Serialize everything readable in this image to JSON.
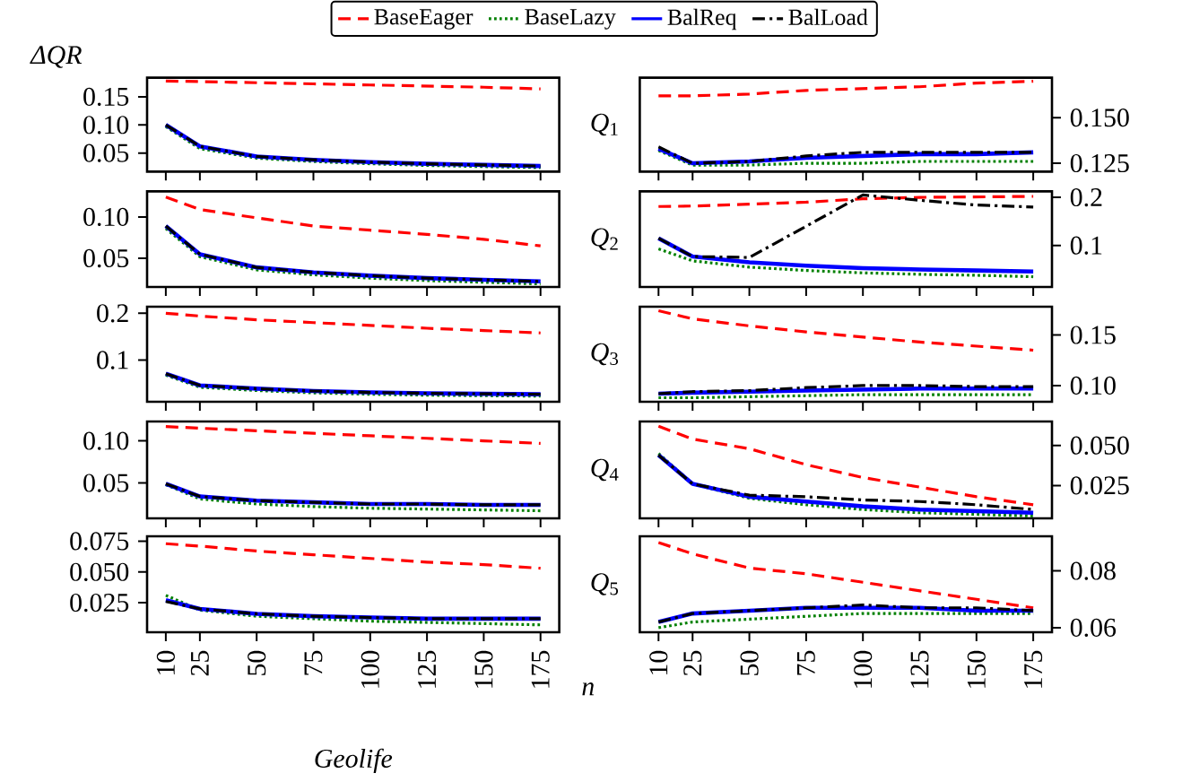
{
  "chart_data": [
    {
      "type": "line",
      "ylabel": "ΔQR",
      "legend": "top",
      "tick_labels": "y",
      "x": [
        10,
        25,
        50,
        75,
        100,
        125,
        150,
        175
      ],
      "xlim": [
        1.75,
        183.25
      ],
      "xticks": [
        10,
        25,
        50,
        75,
        100,
        125,
        150,
        175
      ],
      "ylim": [
        0.017,
        0.184
      ],
      "yticks": [
        0.15,
        {
          "value": 0.1,
          "label": "0.10"
        },
        0.05
      ],
      "series": [
        {
          "name": "BaseEager",
          "color": "#ff0000",
          "line_style": "dashed",
          "values": [
            0.178,
            0.177,
            0.175,
            0.173,
            0.171,
            0.169,
            0.167,
            0.164
          ]
        },
        {
          "name": "BaseLazy",
          "color": "#008000",
          "line_style": "dotted",
          "values": [
            0.097,
            0.058,
            0.041,
            0.035,
            0.031,
            0.028,
            0.026,
            0.024
          ]
        },
        {
          "name": "BalReq",
          "color": "#0000ff",
          "line_style": "solid",
          "values": [
            0.1,
            0.062,
            0.044,
            0.038,
            0.034,
            0.031,
            0.029,
            0.027
          ]
        },
        {
          "name": "BalLoad",
          "color": "#000000",
          "line_style": "dashdot",
          "values": [
            0.1,
            0.062,
            0.044,
            0.038,
            0.034,
            0.031,
            0.029,
            0.027
          ]
        }
      ]
    },
    {
      "type": "line",
      "title": "*Q*$_{1}$",
      "tick_labels": "y",
      "x": [
        10,
        25,
        50,
        75,
        100,
        125,
        150,
        175
      ],
      "xlim": [
        1.75,
        183.25
      ],
      "xticks": [
        10,
        25,
        50,
        75,
        100,
        125,
        150,
        175
      ],
      "ylim": [
        0.1204,
        0.172
      ],
      "yticks": [
        {
          "value": 0.15,
          "label": "0.150"
        },
        {
          "value": 0.125,
          "label": "0.125"
        }
      ],
      "series": [
        {
          "color": "#ff0000",
          "line_style": "dashed",
          "values": [
            0.162,
            0.162,
            0.163,
            0.165,
            0.166,
            0.167,
            0.169,
            0.17
          ]
        },
        {
          "color": "#008000",
          "line_style": "dotted",
          "values": [
            0.132,
            0.124,
            0.124,
            0.125,
            0.125,
            0.126,
            0.126,
            0.126
          ]
        },
        {
          "color": "#0000ff",
          "line_style": "solid",
          "values": [
            0.133,
            0.125,
            0.126,
            0.128,
            0.129,
            0.13,
            0.13,
            0.131
          ]
        },
        {
          "color": "#000000",
          "line_style": "dashdot",
          "values": [
            0.134,
            0.125,
            0.126,
            0.129,
            0.131,
            0.131,
            0.131,
            0.131
          ]
        }
      ]
    },
    {
      "type": "line",
      "tick_labels": "y",
      "x": [
        10,
        25,
        50,
        75,
        100,
        125,
        150,
        175
      ],
      "xlim": [
        1.75,
        183.25
      ],
      "xticks": [
        10,
        25,
        50,
        75,
        100,
        125,
        150,
        175
      ],
      "ylim": [
        0.0153,
        0.131
      ],
      "yticks": [
        {
          "value": 0.1,
          "label": "0.10"
        },
        0.05
      ],
      "series": [
        {
          "color": "#ff0000",
          "line_style": "dashed",
          "values": [
            0.124,
            0.109,
            0.099,
            0.089,
            0.084,
            0.079,
            0.073,
            0.065
          ]
        },
        {
          "color": "#008000",
          "line_style": "dotted",
          "values": [
            0.086,
            0.052,
            0.036,
            0.03,
            0.026,
            0.023,
            0.021,
            0.019
          ]
        },
        {
          "color": "#0000ff",
          "line_style": "solid",
          "values": [
            0.089,
            0.055,
            0.039,
            0.033,
            0.029,
            0.026,
            0.024,
            0.022
          ]
        },
        {
          "color": "#000000",
          "line_style": "dashdot",
          "values": [
            0.089,
            0.055,
            0.039,
            0.033,
            0.029,
            0.026,
            0.024,
            0.022
          ]
        }
      ]
    },
    {
      "type": "line",
      "title": "*Q*$_{2}$",
      "tick_labels": "y",
      "x": [
        10,
        25,
        50,
        75,
        100,
        125,
        150,
        175
      ],
      "xlim": [
        1.75,
        183.25
      ],
      "xticks": [
        10,
        25,
        50,
        75,
        100,
        125,
        150,
        175
      ],
      "ylim": [
        0.0137,
        0.2125
      ],
      "yticks": [
        0.2,
        0.1
      ],
      "series": [
        {
          "color": "#ff0000",
          "line_style": "dashed",
          "values": [
            0.181,
            0.182,
            0.186,
            0.19,
            0.197,
            0.2,
            0.201,
            0.202
          ]
        },
        {
          "color": "#008000",
          "line_style": "dotted",
          "values": [
            0.093,
            0.068,
            0.055,
            0.048,
            0.043,
            0.04,
            0.038,
            0.035
          ]
        },
        {
          "color": "#0000ff",
          "line_style": "solid",
          "values": [
            0.115,
            0.077,
            0.065,
            0.058,
            0.053,
            0.05,
            0.048,
            0.046
          ]
        },
        {
          "color": "#000000",
          "line_style": "dashdot",
          "values": [
            0.115,
            0.077,
            0.075,
            0.14,
            0.205,
            0.194,
            0.184,
            0.18
          ]
        }
      ]
    },
    {
      "type": "line",
      "tick_labels": "y",
      "x": [
        10,
        25,
        50,
        75,
        100,
        125,
        150,
        175
      ],
      "xlim": [
        1.75,
        183.25
      ],
      "xticks": [
        10,
        25,
        50,
        75,
        100,
        125,
        150,
        175
      ],
      "ylim": [
        0.011,
        0.214
      ],
      "yticks": [
        0.2,
        0.1
      ],
      "series": [
        {
          "color": "#ff0000",
          "line_style": "dashed",
          "values": [
            0.2,
            0.194,
            0.186,
            0.18,
            0.174,
            0.168,
            0.163,
            0.158
          ]
        },
        {
          "color": "#008000",
          "line_style": "dotted",
          "values": [
            0.068,
            0.042,
            0.035,
            0.03,
            0.027,
            0.025,
            0.024,
            0.023
          ]
        },
        {
          "color": "#0000ff",
          "line_style": "solid",
          "values": [
            0.071,
            0.046,
            0.039,
            0.034,
            0.031,
            0.029,
            0.028,
            0.027
          ]
        },
        {
          "color": "#000000",
          "line_style": "dashdot",
          "values": [
            0.071,
            0.046,
            0.039,
            0.034,
            0.031,
            0.029,
            0.028,
            0.027
          ]
        }
      ]
    },
    {
      "type": "line",
      "title": "*Q*$_{3}$",
      "tick_labels": "y",
      "x": [
        10,
        25,
        50,
        75,
        100,
        125,
        150,
        175
      ],
      "xlim": [
        1.75,
        183.25
      ],
      "xticks": [
        10,
        25,
        50,
        75,
        100,
        125,
        150,
        175
      ],
      "ylim": [
        0.084,
        0.178
      ],
      "yticks": [
        {
          "value": 0.15,
          "label": "0.15"
        },
        {
          "value": 0.1,
          "label": "0.10"
        }
      ],
      "series": [
        {
          "color": "#ff0000",
          "line_style": "dashed",
          "values": [
            0.174,
            0.166,
            0.159,
            0.153,
            0.148,
            0.143,
            0.139,
            0.135
          ]
        },
        {
          "color": "#008000",
          "line_style": "dotted",
          "values": [
            0.088,
            0.088,
            0.089,
            0.09,
            0.091,
            0.091,
            0.091,
            0.091
          ]
        },
        {
          "color": "#0000ff",
          "line_style": "solid",
          "values": [
            0.092,
            0.093,
            0.094,
            0.095,
            0.096,
            0.097,
            0.097,
            0.097
          ]
        },
        {
          "color": "#000000",
          "line_style": "dashdot",
          "values": [
            0.092,
            0.094,
            0.095,
            0.098,
            0.1,
            0.1,
            0.099,
            0.099
          ]
        }
      ]
    },
    {
      "type": "line",
      "tick_labels": "y",
      "x": [
        10,
        25,
        50,
        75,
        100,
        125,
        150,
        175
      ],
      "xlim": [
        1.75,
        183.25
      ],
      "xticks": [
        10,
        25,
        50,
        75,
        100,
        125,
        150,
        175
      ],
      "ylim": [
        0.008,
        0.123
      ],
      "yticks": [
        {
          "value": 0.1,
          "label": "0.10"
        },
        0.05
      ],
      "series": [
        {
          "color": "#ff0000",
          "line_style": "dashed",
          "values": [
            0.117,
            0.115,
            0.112,
            0.109,
            0.106,
            0.103,
            0.1,
            0.097
          ]
        },
        {
          "color": "#008000",
          "line_style": "dotted",
          "values": [
            0.048,
            0.031,
            0.025,
            0.022,
            0.02,
            0.019,
            0.018,
            0.017
          ]
        },
        {
          "color": "#0000ff",
          "line_style": "solid",
          "values": [
            0.049,
            0.034,
            0.029,
            0.027,
            0.025,
            0.025,
            0.024,
            0.024
          ]
        },
        {
          "color": "#000000",
          "line_style": "dashdot",
          "values": [
            0.049,
            0.034,
            0.029,
            0.027,
            0.025,
            0.025,
            0.024,
            0.024
          ]
        }
      ]
    },
    {
      "type": "line",
      "title": "*Q*$_{4}$",
      "tick_labels": "y",
      "x": [
        10,
        25,
        50,
        75,
        100,
        125,
        150,
        175
      ],
      "xlim": [
        1.75,
        183.25
      ],
      "xticks": [
        10,
        25,
        50,
        75,
        100,
        125,
        150,
        175
      ],
      "ylim": [
        0.0045,
        0.065
      ],
      "yticks": [
        {
          "value": 0.05,
          "label": "0.050"
        },
        {
          "value": 0.025,
          "label": "0.025"
        }
      ],
      "series": [
        {
          "color": "#ff0000",
          "line_style": "dashed",
          "values": [
            0.062,
            0.054,
            0.048,
            0.038,
            0.03,
            0.024,
            0.018,
            0.013
          ]
        },
        {
          "color": "#008000",
          "line_style": "dotted",
          "values": [
            0.045,
            0.026,
            0.017,
            0.013,
            0.01,
            0.008,
            0.007,
            0.006
          ]
        },
        {
          "color": "#0000ff",
          "line_style": "solid",
          "values": [
            0.044,
            0.026,
            0.018,
            0.015,
            0.012,
            0.01,
            0.009,
            0.008
          ]
        },
        {
          "color": "#000000",
          "line_style": "dashdot",
          "values": [
            0.044,
            0.026,
            0.019,
            0.018,
            0.016,
            0.015,
            0.013,
            0.01
          ]
        }
      ]
    },
    {
      "type": "line",
      "xlabel": "Geolife",
      "annotations": [
        "n"
      ],
      "x": [
        10,
        25,
        50,
        75,
        100,
        125,
        150,
        175
      ],
      "xlim": [
        1.75,
        183.25
      ],
      "xticks": [
        10,
        25,
        50,
        75,
        100,
        125,
        150,
        175
      ],
      "ylim": [
        0.001,
        0.079
      ],
      "yticks": [
        {
          "value": 0.075,
          "label": "0.075"
        },
        {
          "value": 0.05,
          "label": "0.050"
        },
        0.025
      ],
      "series": [
        {
          "color": "#ff0000",
          "line_style": "dashed",
          "values": [
            0.073,
            0.071,
            0.067,
            0.064,
            0.061,
            0.058,
            0.056,
            0.053
          ]
        },
        {
          "color": "#008000",
          "line_style": "dotted",
          "values": [
            0.031,
            0.019,
            0.014,
            0.012,
            0.01,
            0.009,
            0.008,
            0.007
          ]
        },
        {
          "color": "#0000ff",
          "line_style": "solid",
          "values": [
            0.027,
            0.02,
            0.016,
            0.014,
            0.013,
            0.012,
            0.012,
            0.012
          ]
        },
        {
          "color": "#000000",
          "line_style": "dashdot",
          "values": [
            0.026,
            0.02,
            0.016,
            0.014,
            0.013,
            0.012,
            0.012,
            0.012
          ]
        }
      ]
    },
    {
      "type": "line",
      "title": "*Q*$_{5}$",
      "x": [
        10,
        25,
        50,
        75,
        100,
        125,
        150,
        175
      ],
      "xlim": [
        1.75,
        183.25
      ],
      "xticks": [
        10,
        25,
        50,
        75,
        100,
        125,
        150,
        175
      ],
      "ylim": [
        0.0584,
        0.0922
      ],
      "yticks": [
        0.08,
        0.06
      ],
      "series": [
        {
          "color": "#ff0000",
          "line_style": "dashed",
          "values": [
            0.09,
            0.086,
            0.081,
            0.079,
            0.076,
            0.073,
            0.07,
            0.067
          ]
        },
        {
          "color": "#008000",
          "line_style": "dotted",
          "values": [
            0.06,
            0.062,
            0.063,
            0.064,
            0.065,
            0.065,
            0.065,
            0.065
          ]
        },
        {
          "color": "#0000ff",
          "line_style": "solid",
          "values": [
            0.062,
            0.065,
            0.066,
            0.067,
            0.067,
            0.067,
            0.066,
            0.066
          ]
        },
        {
          "color": "#000000",
          "line_style": "dashdot",
          "values": [
            0.062,
            0.065,
            0.066,
            0.067,
            0.068,
            0.067,
            0.067,
            0.066
          ]
        }
      ]
    }
  ]
}
